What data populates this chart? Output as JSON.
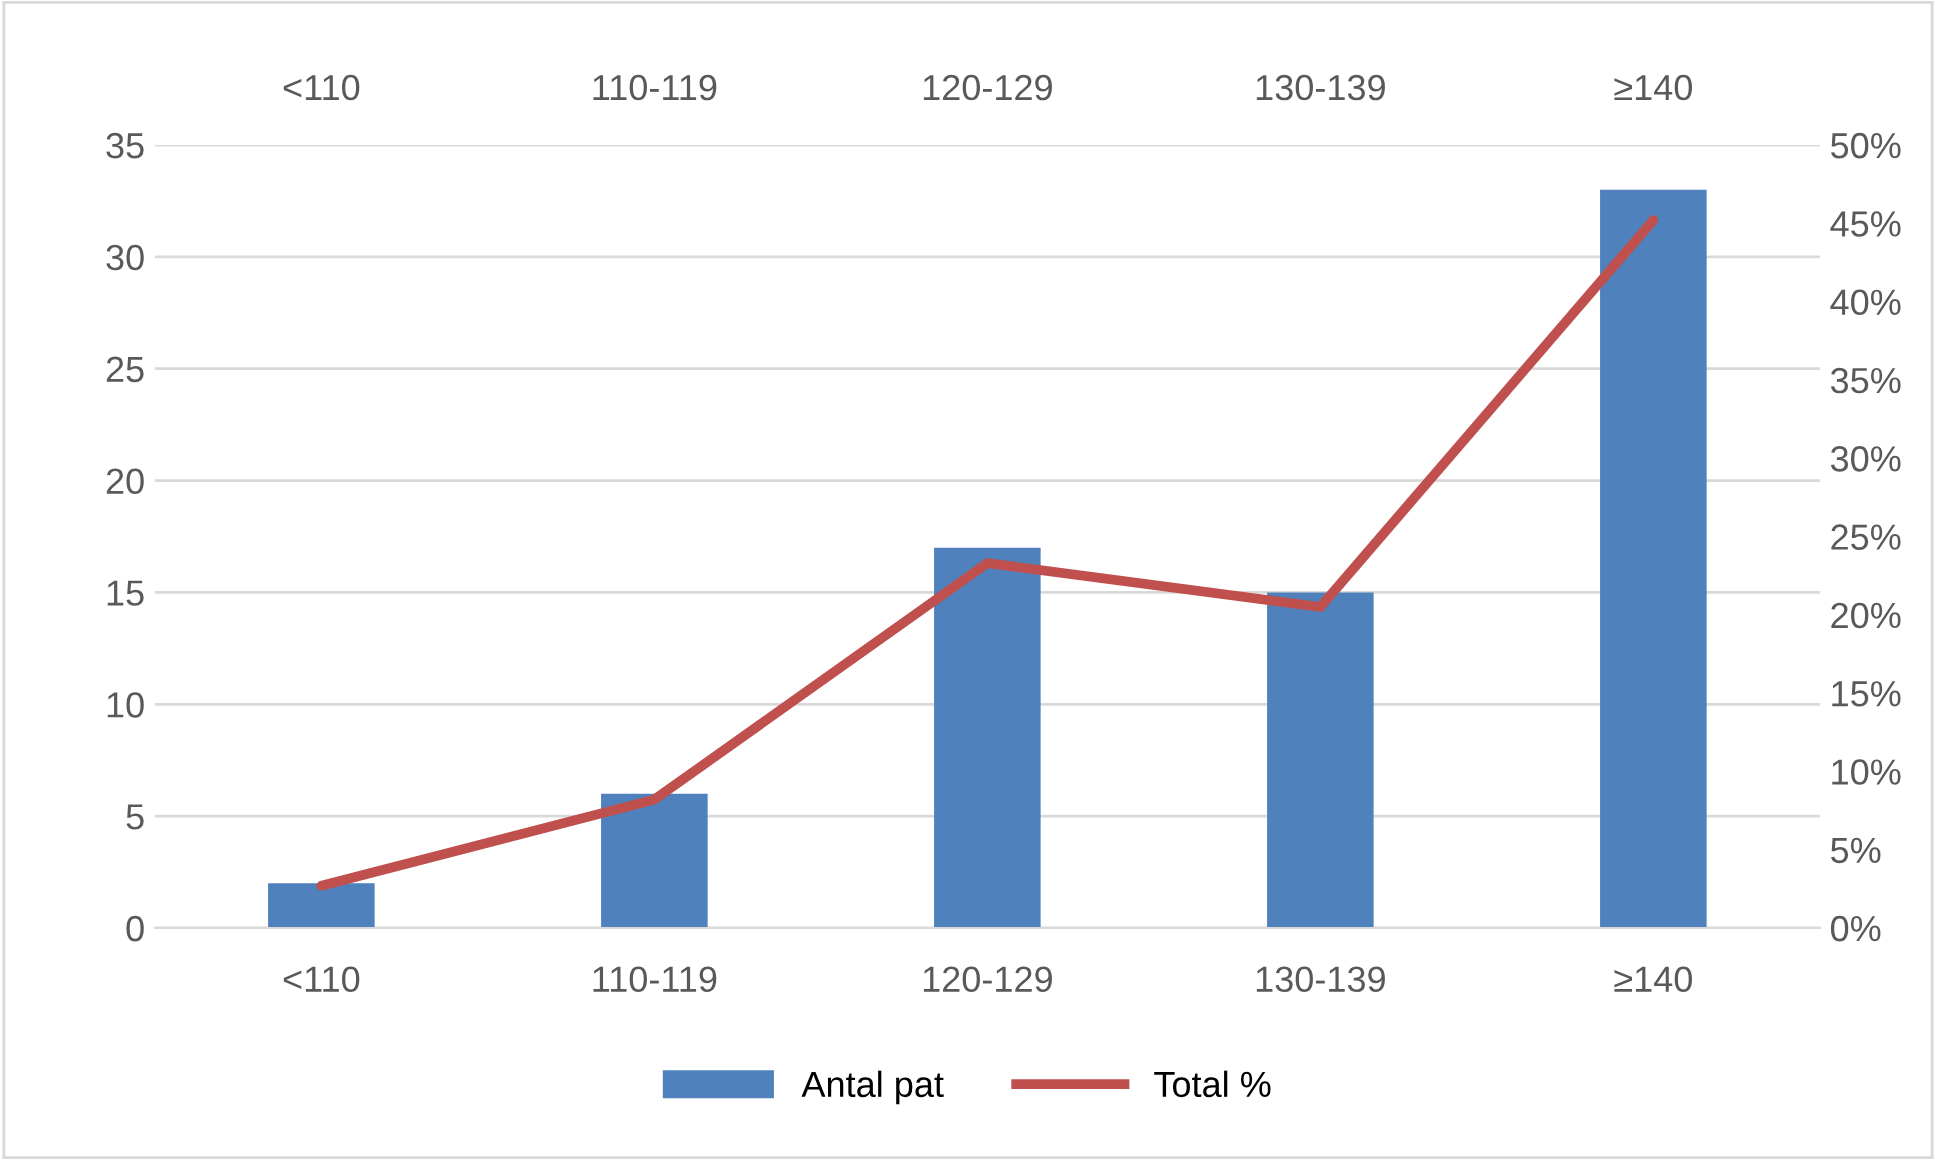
{
  "chart_data": {
    "type": "bar",
    "categories": [
      "<110",
      "110-119",
      "120-129",
      "130-139",
      "≥140"
    ],
    "series": [
      {
        "name": "Antal pat",
        "color": "#4f81bd",
        "values": [
          2,
          6,
          17,
          15,
          33
        ]
      },
      {
        "name": "Total %",
        "type": "line",
        "axis": "y2",
        "color": "#c0504d",
        "values": [
          2.7,
          8.2,
          23.3,
          20.5,
          45.2
        ]
      }
    ],
    "ylim": [
      0,
      35
    ],
    "yticks": [
      0,
      5,
      10,
      15,
      20,
      25,
      30,
      35
    ],
    "y2lim": [
      0,
      50
    ],
    "y2ticks": [
      {
        "value": 0,
        "label": "0%"
      },
      {
        "value": 5,
        "label": "5%"
      },
      {
        "value": 10,
        "label": "10%"
      },
      {
        "value": 15,
        "label": "15%"
      },
      {
        "value": 20,
        "label": "20%"
      },
      {
        "value": 25,
        "label": "25%"
      },
      {
        "value": 30,
        "label": "30%"
      },
      {
        "value": 35,
        "label": "35%"
      },
      {
        "value": 40,
        "label": "40%"
      },
      {
        "value": 45,
        "label": "45%"
      },
      {
        "value": 50,
        "label": "50%"
      }
    ],
    "grid": "y",
    "legend": "bottom",
    "marker": "none",
    "line_style": "solid"
  }
}
